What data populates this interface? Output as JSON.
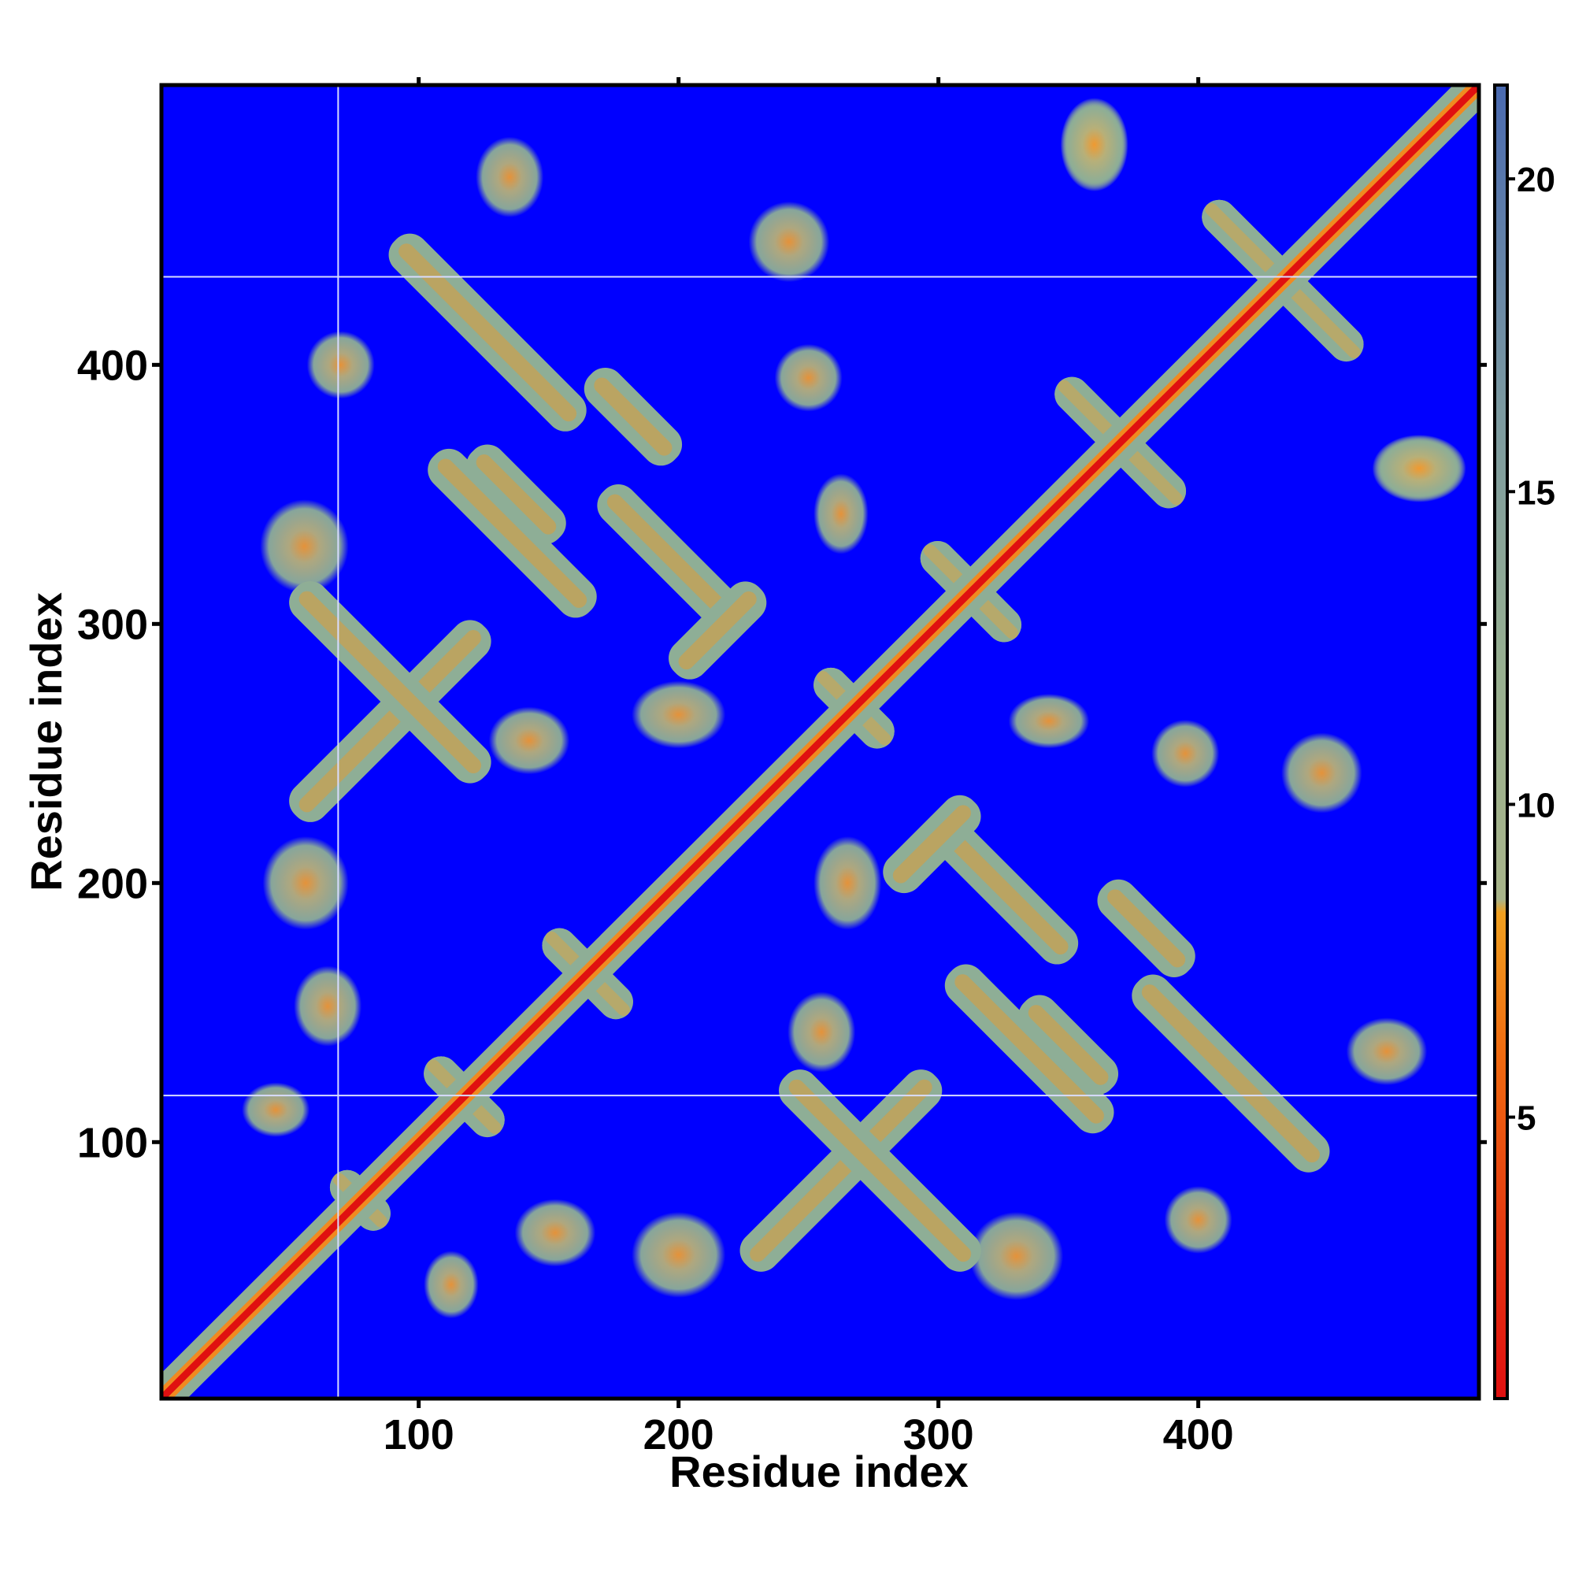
{
  "chart_data": {
    "type": "heatmap",
    "title": "",
    "xlabel": "Residue index",
    "ylabel": "Residue index",
    "xlim": [
      1,
      508
    ],
    "ylim": [
      1,
      508
    ],
    "x_ticks": [
      100,
      200,
      300,
      400
    ],
    "y_ticks": [
      100,
      200,
      300,
      400
    ],
    "x_tick_labels": [
      "100",
      "200",
      "300",
      "400"
    ],
    "y_tick_labels": [
      "100",
      "200",
      "300",
      "400"
    ],
    "colorbar": {
      "range": [
        0.5,
        21.5
      ],
      "ticks": [
        5,
        10,
        15,
        20
      ],
      "tick_labels": [
        "5",
        "10",
        "15",
        "20"
      ],
      "colors": [
        "#e01010",
        "#f06a10",
        "#f0a020",
        "#9cb888",
        "#6e8ea0",
        "#4a6ab0"
      ],
      "background_color": "#0000ff"
    },
    "symmetric": true,
    "diagonal": "close contact along i = j (values below 5)",
    "reference_lines": {
      "x": [
        69
      ],
      "y": [
        118,
        434
      ]
    },
    "contact_features": [
      {
        "kind": "parallel",
        "x": [
          60,
          118
        ],
        "y": [
          220,
          305
        ]
      },
      {
        "kind": "antiparallel",
        "x": [
          60,
          118
        ],
        "y": [
          235,
          320
        ]
      },
      {
        "kind": "antiparallel",
        "x": [
          93,
          160
        ],
        "y": [
          375,
          450
        ]
      },
      {
        "kind": "antiparallel",
        "x": [
          112,
          160
        ],
        "y": [
          300,
          370
        ]
      },
      {
        "kind": "antiparallel",
        "x": [
          125,
          150
        ],
        "y": [
          330,
          370
        ]
      },
      {
        "kind": "antiparallel",
        "x": [
          170,
          225
        ],
        "y": [
          300,
          350
        ]
      },
      {
        "kind": "parallel",
        "x": [
          200,
          230
        ],
        "y": [
          280,
          315
        ]
      },
      {
        "kind": "antiparallel",
        "x": [
          165,
          200
        ],
        "y": [
          365,
          395
        ]
      },
      {
        "kind": "blob",
        "x": [
          42,
          70
        ],
        "y": [
          315,
          345
        ]
      },
      {
        "kind": "blob",
        "x": [
          43,
          70
        ],
        "y": [
          185,
          215
        ]
      },
      {
        "kind": "blob",
        "x": [
          55,
          75
        ],
        "y": [
          140,
          165
        ]
      },
      {
        "kind": "blob",
        "x": [
          125,
          145
        ],
        "y": [
          460,
          485
        ]
      },
      {
        "kind": "blob",
        "x": [
          240,
          260
        ],
        "y": [
          385,
          405
        ]
      },
      {
        "kind": "blob",
        "x": [
          230,
          255
        ],
        "y": [
          435,
          460
        ]
      },
      {
        "kind": "blob",
        "x": [
          255,
          270
        ],
        "y": [
          330,
          355
        ]
      },
      {
        "kind": "blob",
        "x": [
          130,
          155
        ],
        "y": [
          245,
          265
        ]
      },
      {
        "kind": "blob",
        "x": [
          185,
          215
        ],
        "y": [
          255,
          275
        ]
      },
      {
        "kind": "blob",
        "x": [
          35,
          55
        ],
        "y": [
          105,
          120
        ]
      },
      {
        "kind": "blob",
        "x": [
          60,
          80
        ],
        "y": [
          390,
          410
        ]
      },
      {
        "kind": "blob",
        "x": [
          350,
          370
        ],
        "y": [
          470,
          500
        ]
      },
      {
        "kind": "blob",
        "x": [
          470,
          500
        ],
        "y": [
          350,
          370
        ]
      },
      {
        "kind": "cross",
        "x": [
          340,
          400
        ],
        "y": [
          340,
          400
        ]
      },
      {
        "kind": "cross",
        "x": [
          395,
          470
        ],
        "y": [
          395,
          470
        ]
      },
      {
        "kind": "cross",
        "x": [
          290,
          335
        ],
        "y": [
          290,
          335
        ]
      },
      {
        "kind": "cross",
        "x": [
          250,
          285
        ],
        "y": [
          250,
          285
        ]
      },
      {
        "kind": "cross",
        "x": [
          145,
          185
        ],
        "y": [
          145,
          185
        ]
      },
      {
        "kind": "cross",
        "x": [
          100,
          135
        ],
        "y": [
          100,
          135
        ]
      },
      {
        "kind": "cross",
        "x": [
          65,
          90
        ],
        "y": [
          65,
          90
        ]
      }
    ]
  }
}
